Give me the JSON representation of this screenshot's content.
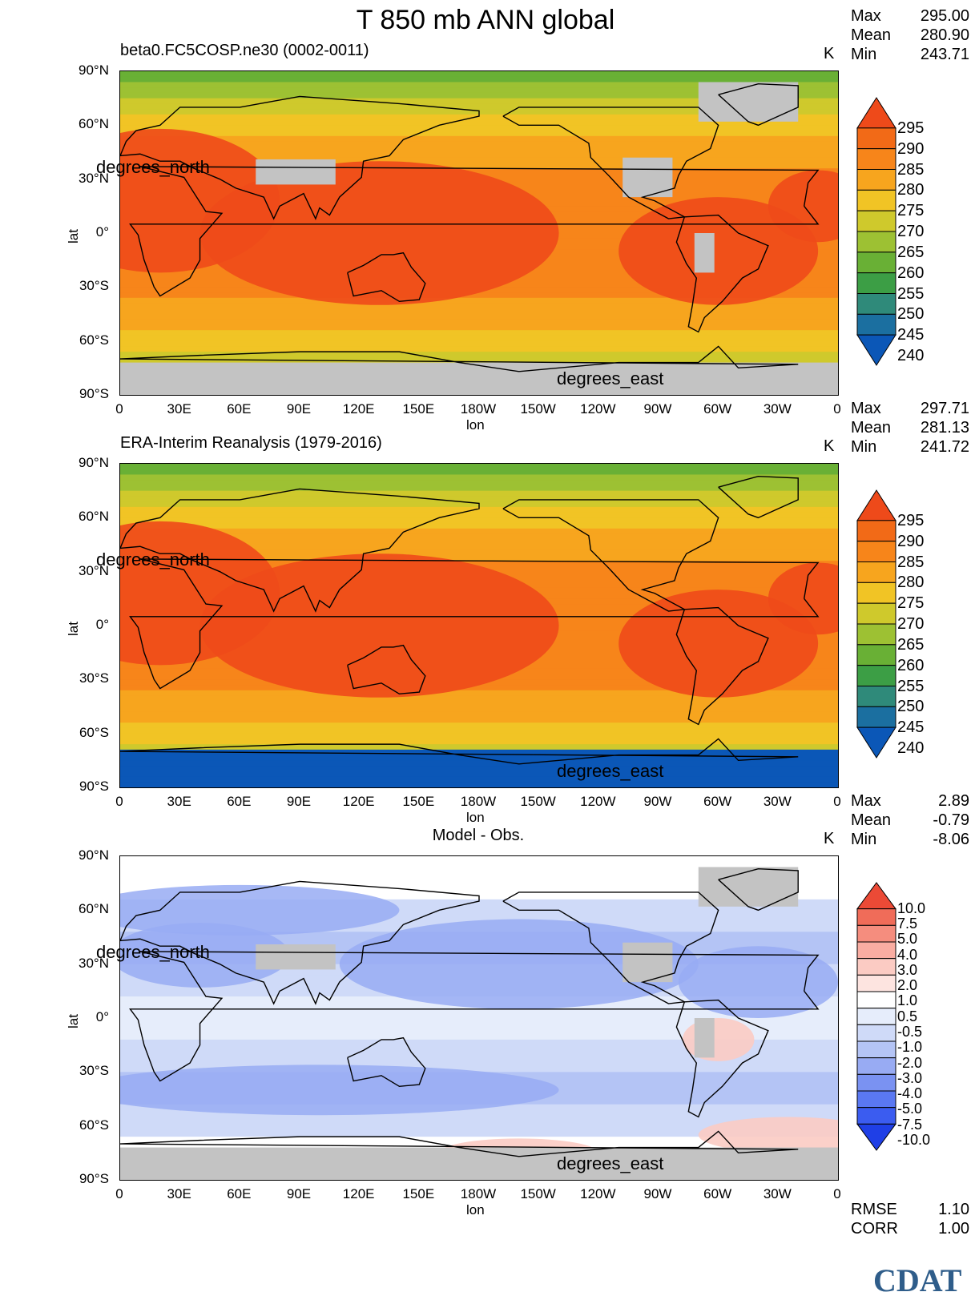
{
  "title": "T 850 mb ANN global",
  "chart_data": [
    {
      "type": "contour-map",
      "subtitle": "beta0.FC5COSP.ne30 (0002-0011)",
      "units": "K",
      "stats": {
        "max": "295.00",
        "mean": "280.90",
        "min": "243.71"
      },
      "xlabel": "lon",
      "ylabel": "lat",
      "xticks": [
        "0",
        "30E",
        "60E",
        "90E",
        "120E",
        "150E",
        "180W",
        "150W",
        "120W",
        "90W",
        "60W",
        "30W",
        "0"
      ],
      "yticks": [
        "90°N",
        "60°N",
        "30°N",
        "0°",
        "30°S",
        "60°S",
        "90°S"
      ],
      "annotations": [
        "degrees_north",
        "degrees_east"
      ],
      "colorbar_levels": [
        240,
        245,
        250,
        255,
        260,
        265,
        270,
        275,
        280,
        285,
        290,
        295
      ],
      "colorbar_labels": [
        "295",
        "290",
        "285",
        "280",
        "275",
        "270",
        "265",
        "260",
        "255",
        "250",
        "245",
        "240"
      ],
      "colors": [
        "#0b57b7",
        "#1b6fa0",
        "#2f8a7a",
        "#3c9e45",
        "#69b035",
        "#9dc133",
        "#cfc92c",
        "#f1c425",
        "#f7a51e",
        "#f7851a",
        "#f26a17",
        "#ee4a1a"
      ],
      "field": "model-temp",
      "missing_color": "#c3c3c3"
    },
    {
      "type": "contour-map",
      "subtitle": "ERA-Interim Reanalysis (1979-2016)",
      "units": "K",
      "stats": {
        "max": "297.71",
        "mean": "281.13",
        "min": "241.72"
      },
      "xlabel": "lon",
      "ylabel": "lat",
      "xticks": [
        "0",
        "30E",
        "60E",
        "90E",
        "120E",
        "150E",
        "180W",
        "150W",
        "120W",
        "90W",
        "60W",
        "30W",
        "0"
      ],
      "yticks": [
        "90°N",
        "60°N",
        "30°N",
        "0°",
        "30°S",
        "60°S",
        "90°S"
      ],
      "annotations": [
        "degrees_north",
        "degrees_east"
      ],
      "colorbar_levels": [
        240,
        245,
        250,
        255,
        260,
        265,
        270,
        275,
        280,
        285,
        290,
        295
      ],
      "colorbar_labels": [
        "295",
        "290",
        "285",
        "280",
        "275",
        "270",
        "265",
        "260",
        "255",
        "250",
        "245",
        "240"
      ],
      "colors": [
        "#0b57b7",
        "#1b6fa0",
        "#2f8a7a",
        "#3c9e45",
        "#69b035",
        "#9dc133",
        "#cfc92c",
        "#f1c425",
        "#f7a51e",
        "#f7851a",
        "#f26a17",
        "#ee4a1a"
      ],
      "field": "obs-temp"
    },
    {
      "type": "contour-map",
      "subtitle": "Model - Obs.",
      "units": "K",
      "stats": {
        "max": "2.89",
        "mean": "-0.79",
        "min": "-8.06"
      },
      "xlabel": "lon",
      "ylabel": "lat",
      "xticks": [
        "0",
        "30E",
        "60E",
        "90E",
        "120E",
        "150E",
        "180W",
        "150W",
        "120W",
        "90W",
        "60W",
        "30W",
        "0"
      ],
      "yticks": [
        "90°N",
        "60°N",
        "30°N",
        "0°",
        "30°S",
        "60°S",
        "90°S"
      ],
      "annotations": [
        "degrees_north",
        "degrees_east"
      ],
      "colorbar_labels": [
        "10.0",
        "7.5",
        "5.0",
        "4.0",
        "3.0",
        "2.0",
        "1.0",
        "0.5",
        "-0.5",
        "-1.0",
        "-2.0",
        "-3.0",
        "-4.0",
        "-5.0",
        "-7.5",
        "-10.0"
      ],
      "colors": [
        "#1f3fe6",
        "#3b5cf0",
        "#5a78f2",
        "#7a92f2",
        "#98abf3",
        "#b4c4f5",
        "#cfdaf8",
        "#e6edfb",
        "#ffffff",
        "#fde4e0",
        "#fbcbc3",
        "#f9ada2",
        "#f58d7e",
        "#f06c59",
        "#eb4a36"
      ],
      "field": "diff",
      "missing_color": "#c3c3c3",
      "metrics": {
        "RMSE": "1.10",
        "CORR": "1.00"
      }
    }
  ],
  "logo": "CDAT"
}
